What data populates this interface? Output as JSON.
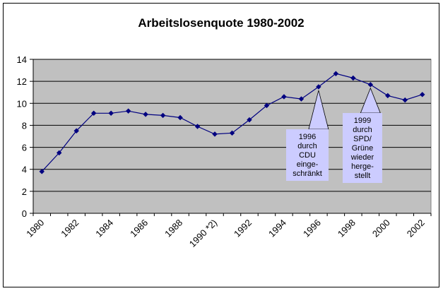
{
  "chart_data": {
    "type": "line",
    "title": "Arbeitslosenquote 1980-2002",
    "xlabel": "",
    "ylabel": "",
    "ylim": [
      0,
      14
    ],
    "yticks": [
      "0",
      "2",
      "4",
      "6",
      "8",
      "10",
      "12",
      "14"
    ],
    "grid": true,
    "legend": "none",
    "colors": {
      "plot_bg": "#c0c0c0",
      "line": "#000080",
      "callout_bg": "#ccccff",
      "grid": "#000000"
    },
    "x_tick_labels": [
      "1980",
      "1982",
      "1984",
      "1986",
      "1988",
      "1990 *2)",
      "1992",
      "1994",
      "1996",
      "1998",
      "2000",
      "2002"
    ],
    "categories": [
      "1980",
      "1981",
      "1982",
      "1983",
      "1984",
      "1985",
      "1986",
      "1987",
      "1988",
      "1989",
      "1990",
      "1991",
      "1992",
      "1993",
      "1994",
      "1995",
      "1996",
      "1997",
      "1998",
      "1999",
      "2000",
      "2001",
      "2002"
    ],
    "series": [
      {
        "values": [
          3.8,
          5.5,
          7.5,
          9.1,
          9.1,
          9.3,
          9.0,
          8.9,
          8.7,
          7.9,
          7.2,
          7.3,
          8.5,
          9.8,
          10.6,
          10.4,
          11.5,
          12.7,
          12.3,
          11.7,
          10.7,
          10.3,
          10.8
        ]
      }
    ],
    "annotations": [
      {
        "lines": [
          "1996",
          "durch",
          "CDU",
          "einge-",
          "schränkt"
        ],
        "category": "1996"
      },
      {
        "lines": [
          "1999",
          "durch",
          "SPD/",
          "Grüne",
          "wieder",
          "herge-",
          "stellt"
        ],
        "category": "1999"
      }
    ]
  }
}
